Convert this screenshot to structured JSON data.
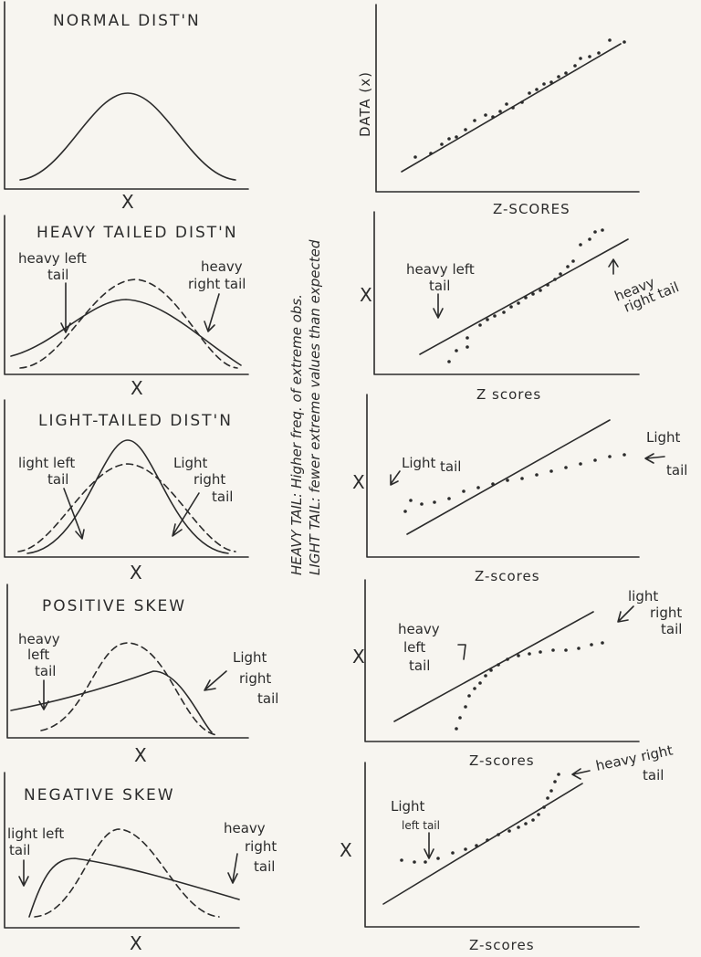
{
  "left_panels": [
    {
      "title": "NORMAL DIST'N",
      "x_label": "X",
      "notes": []
    },
    {
      "title": "HEAVY TAILED DIST'N",
      "x_label": "X",
      "notes": [
        "heavy left",
        "tail",
        "heavy",
        "right tail"
      ]
    },
    {
      "title": "LIGHT-TAILED DIST'N",
      "x_label": "X",
      "notes": [
        "light left",
        "tail",
        "Light",
        "right",
        "tail"
      ]
    },
    {
      "title": "POSITIVE SKEW",
      "x_label": "X",
      "notes": [
        "heavy",
        "left",
        "tail",
        "Light",
        "right",
        "tail"
      ]
    },
    {
      "title": "NEGATIVE SKEW",
      "x_label": "X",
      "notes": [
        "light left",
        "tail",
        "heavy",
        "right",
        "tail"
      ]
    }
  ],
  "right_panels": [
    {
      "y_label": "DATA (x)",
      "x_label": "Z-SCORES",
      "notes": []
    },
    {
      "y_label": "X",
      "x_label": "Z scores",
      "notes": [
        "heavy left",
        "tail",
        "heavy",
        "right tail"
      ]
    },
    {
      "y_label": "X",
      "x_label": "Z-scores",
      "notes": [
        "Light",
        "tail",
        "Light",
        "tail"
      ]
    },
    {
      "y_label": "X",
      "x_label": "Z-scores",
      "notes": [
        "heavy",
        "left",
        "tail",
        "light",
        "right",
        "tail"
      ]
    },
    {
      "y_label": "X",
      "x_label": "Z-scores",
      "notes": [
        "Light",
        "left tail",
        "heavy right",
        "tail"
      ]
    }
  ],
  "center_notes": [
    "HEAVY TAIL: Higher freq. of extreme obs.",
    "LIGHT TAIL: fewer extreme values than expected"
  ]
}
